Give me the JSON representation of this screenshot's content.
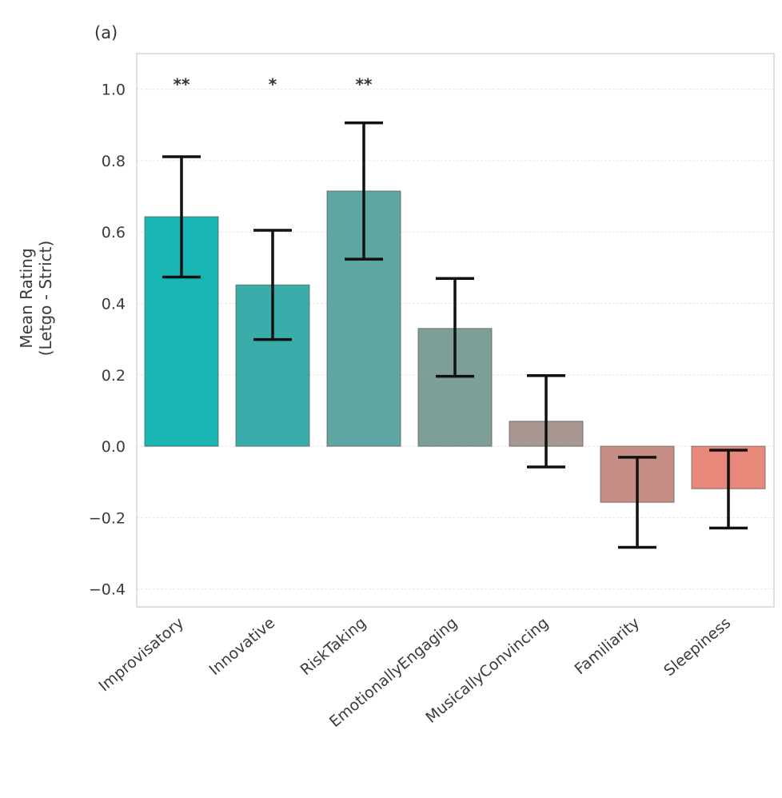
{
  "panel_label": "(a)",
  "chart_data": {
    "type": "bar",
    "title": "",
    "xlabel": "",
    "ylabel": "Mean Rating\n(Letgo - Strict)",
    "ylabel_lines": [
      "Mean Rating",
      "(Letgo - Strict)"
    ],
    "ylim": [
      -0.45,
      1.1
    ],
    "yticks": [
      -0.4,
      -0.2,
      0.0,
      0.2,
      0.4,
      0.6,
      0.8,
      1.0
    ],
    "ytick_labels": [
      "−0.4",
      "−0.2",
      "0.0",
      "0.2",
      "0.4",
      "0.6",
      "0.8",
      "1.0"
    ],
    "grid": true,
    "legend": "none",
    "categories": [
      "Improvisatory",
      "Innovative",
      "RiskTaking",
      "EmotionallyEngaging",
      "MusicallyConvincing",
      "Familiarity",
      "Sleepiness"
    ],
    "values": [
      0.643,
      0.452,
      0.715,
      0.33,
      0.07,
      -0.157,
      -0.119
    ],
    "error_low": [
      0.474,
      0.299,
      0.524,
      0.196,
      -0.058,
      -0.283,
      -0.229
    ],
    "error_high": [
      0.811,
      0.605,
      0.906,
      0.47,
      0.198,
      -0.031,
      -0.011
    ],
    "colors": [
      "#1ab5b5",
      "#3aadab",
      "#5ea6a2",
      "#7e9f98",
      "#a89690",
      "#c68e85",
      "#e8887b"
    ],
    "significance": [
      "**",
      "*",
      "**",
      "",
      "",
      "",
      ""
    ],
    "significance_y": 1.03
  }
}
